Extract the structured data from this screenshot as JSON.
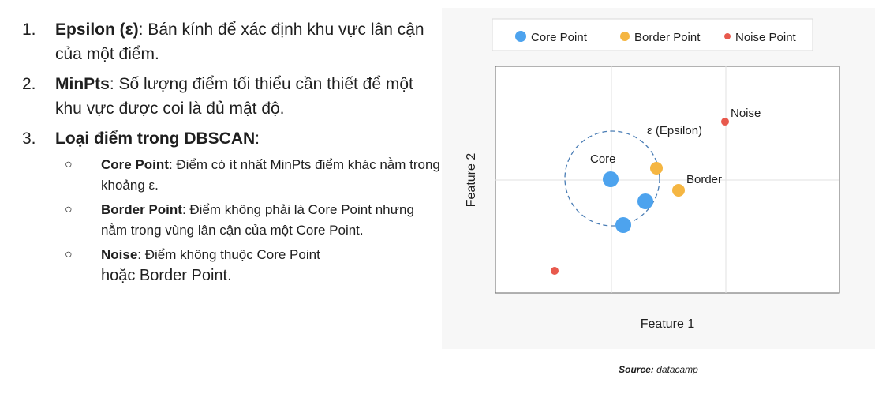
{
  "list": [
    {
      "num": "1.",
      "term": "Epsilon (ε)",
      "desc": ": Bán kính để xác định khu vực lân cận của một điểm."
    },
    {
      "num": "2.",
      "term": "MinPts",
      "desc": ": Số lượng điểm tối thiểu cần thiết để một khu vực được coi là đủ mật độ."
    },
    {
      "num": "3.",
      "term": "Loại điểm trong DBSCAN",
      "desc": ":"
    }
  ],
  "subitems": [
    {
      "bullet": "○",
      "term": "Core Point",
      "desc": ": Điểm có ít nhất MinPts điểm khác nằm trong khoảng ε."
    },
    {
      "bullet": "○",
      "term": "Border Point",
      "desc": ": Điểm không phải là Core Point nhưng nằm trong vùng lân cận của một Core Point."
    },
    {
      "bullet": "○",
      "term": "Noise",
      "desc": ": Điểm không thuộc Core Point",
      "desc_tail": "hoặc Border Point."
    }
  ],
  "figure": {
    "legend": [
      "Core Point",
      "Border Point",
      "Noise Point"
    ],
    "xlabel": "Feature 1",
    "ylabel": "Feature 2",
    "annotations": {
      "core": "Core",
      "border": "Border",
      "noise": "Noise",
      "epsilon": "ε (Epsilon)"
    },
    "colors": {
      "core": "#4da3ee",
      "border": "#f5b642",
      "noise": "#e8594d",
      "circle": "#4a7db5"
    }
  },
  "caption": {
    "source_label": "Source:",
    "source_value": " datacamp"
  }
}
